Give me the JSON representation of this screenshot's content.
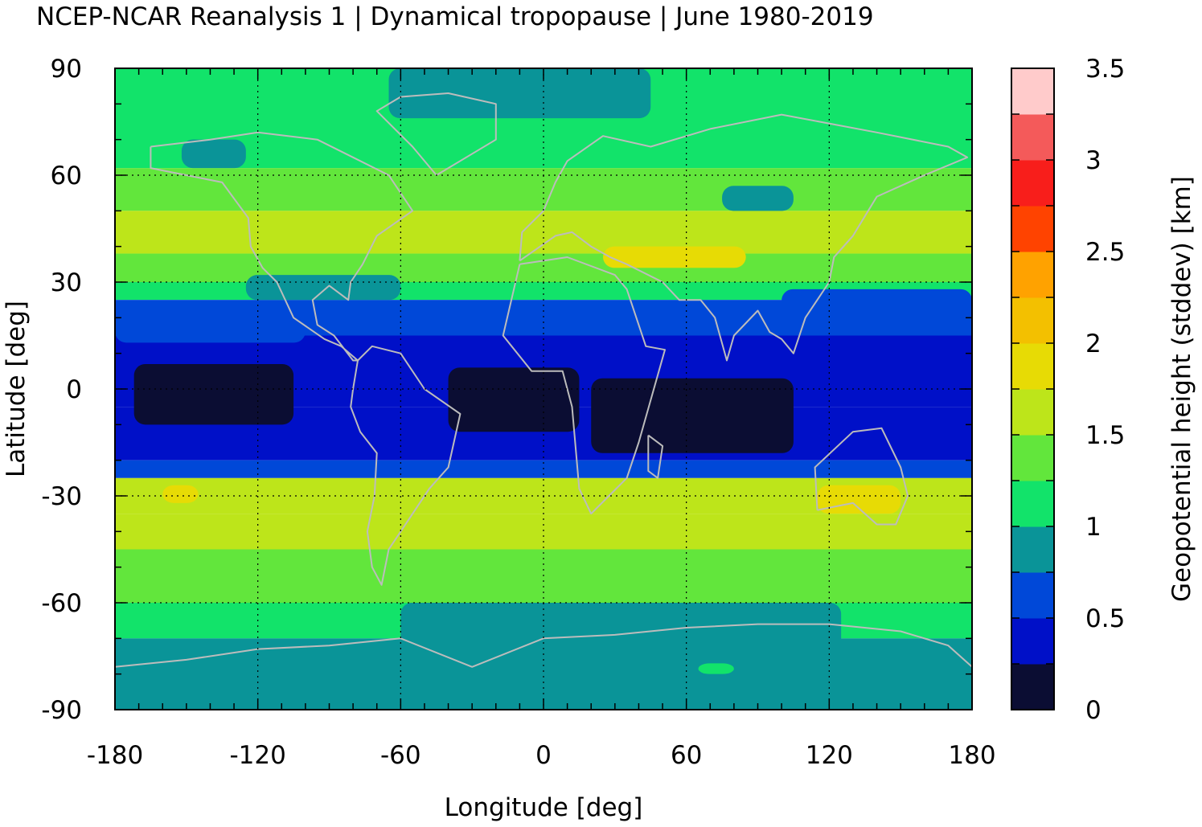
{
  "chart_data": {
    "type": "heatmap",
    "title": "NCEP-NCAR Reanalysis 1 | Dynamical tropopause | June 1980-2019",
    "xlabel": "Longitude [deg]",
    "ylabel": "Latitude [deg]",
    "xlim": [
      -180,
      180
    ],
    "ylim": [
      -90,
      90
    ],
    "xticks": [
      "-180",
      "-120",
      "-60",
      "0",
      "60",
      "120",
      "180"
    ],
    "yticks": [
      "90",
      "60",
      "30",
      "0",
      "-30",
      "-60",
      "-90"
    ],
    "grid": true,
    "colorbar": {
      "label": "Geopotential height (stddev) [km]",
      "range": [
        0,
        3.5
      ],
      "step": 0.25,
      "ticks": [
        "0",
        "0.5",
        "1",
        "1.5",
        "2",
        "2.5",
        "3",
        "3.5"
      ],
      "colors": [
        "#0b0d33",
        "#0010c8",
        "#0048d8",
        "#0a9498",
        "#12e36a",
        "#62e63c",
        "#bde51a",
        "#e7db05",
        "#f3c000",
        "#ffa200",
        "#ff4300",
        "#f81e1b",
        "#f45a5a",
        "#ffcbcb"
      ]
    },
    "zonal_bands": [
      {
        "lat": [
          75,
          90
        ],
        "value": 1.1
      },
      {
        "lat": [
          62,
          75
        ],
        "value": 1.2
      },
      {
        "lat": [
          50,
          62
        ],
        "value": 1.3
      },
      {
        "lat": [
          38,
          50
        ],
        "value": 1.5
      },
      {
        "lat": [
          30,
          38
        ],
        "value": 1.3
      },
      {
        "lat": [
          25,
          30
        ],
        "value": 1.1
      },
      {
        "lat": [
          15,
          25
        ],
        "value": 0.6
      },
      {
        "lat": [
          -5,
          15
        ],
        "value": 0.4
      },
      {
        "lat": [
          -20,
          -5
        ],
        "value": 0.4
      },
      {
        "lat": [
          -25,
          -20
        ],
        "value": 0.6
      },
      {
        "lat": [
          -35,
          -25
        ],
        "value": 1.6
      },
      {
        "lat": [
          -45,
          -35
        ],
        "value": 1.5
      },
      {
        "lat": [
          -60,
          -45
        ],
        "value": 1.3
      },
      {
        "lat": [
          -70,
          -60
        ],
        "value": 1.1
      },
      {
        "lat": [
          -90,
          -70
        ],
        "value": 0.9
      }
    ],
    "regions": [
      {
        "lon": [
          -172,
          -105
        ],
        "lat": [
          -10,
          7
        ],
        "value": 0.1
      },
      {
        "lon": [
          -40,
          15
        ],
        "lat": [
          -12,
          6
        ],
        "value": 0.1
      },
      {
        "lon": [
          20,
          105
        ],
        "lat": [
          -18,
          3
        ],
        "value": 0.1
      },
      {
        "lon": [
          -152,
          -125
        ],
        "lat": [
          62,
          70
        ],
        "value": 0.9
      },
      {
        "lon": [
          -65,
          45
        ],
        "lat": [
          76,
          90
        ],
        "value": 0.9
      },
      {
        "lon": [
          75,
          105
        ],
        "lat": [
          50,
          57
        ],
        "value": 0.9
      },
      {
        "lon": [
          -125,
          -60
        ],
        "lat": [
          25,
          32
        ],
        "value": 0.9
      },
      {
        "lon": [
          25,
          85
        ],
        "lat": [
          34,
          40
        ],
        "value": 1.9
      },
      {
        "lon": [
          115,
          150
        ],
        "lat": [
          -35,
          -27
        ],
        "value": 1.9
      },
      {
        "lon": [
          -160,
          -145
        ],
        "lat": [
          -32,
          -27
        ],
        "value": 1.8
      },
      {
        "lon": [
          -60,
          125
        ],
        "lat": [
          -90,
          -60
        ],
        "value": 0.9
      },
      {
        "lon": [
          65,
          80
        ],
        "lat": [
          -80,
          -77
        ],
        "value": 1.2
      },
      {
        "lon": [
          100,
          180
        ],
        "lat": [
          15,
          28
        ],
        "value": 0.7
      },
      {
        "lon": [
          -180,
          -100
        ],
        "lat": [
          13,
          20
        ],
        "value": 0.7
      }
    ]
  }
}
